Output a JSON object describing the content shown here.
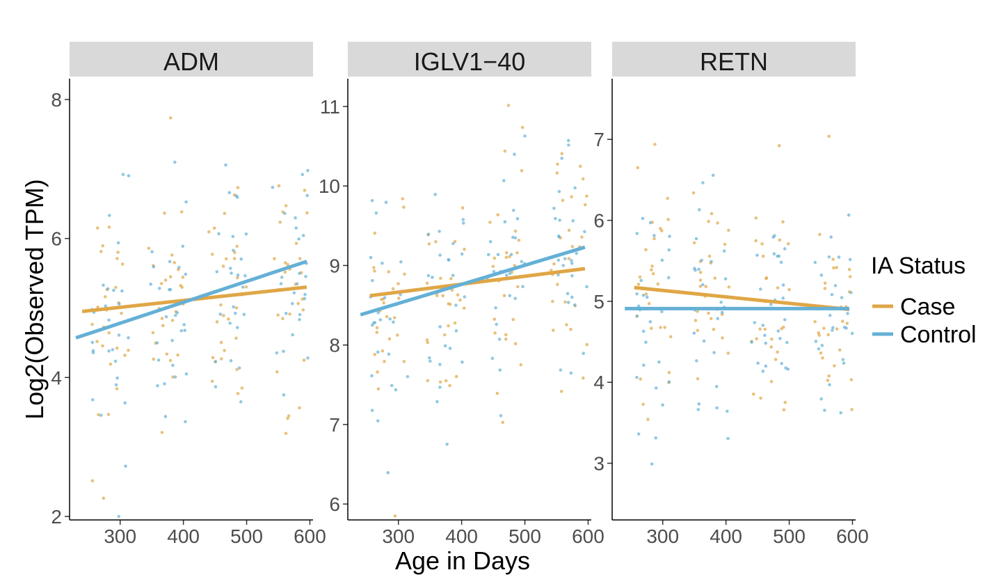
{
  "chart_data": {
    "type": "scatter",
    "xlabel": "Age in Days",
    "ylabel": "Log2(Observed TPM)",
    "x_ticks": [
      300,
      400,
      500,
      600
    ],
    "xlim": [
      220,
      605
    ],
    "legend": {
      "title": "IA Status",
      "position": "right",
      "entries": [
        {
          "name": "Case",
          "color": "#E0A646"
        },
        {
          "name": "Control",
          "color": "#64B0D6"
        }
      ]
    },
    "panels": [
      {
        "title": "ADM",
        "ylim": [
          1.95,
          8.3
        ],
        "y_ticks": [
          2,
          4,
          6,
          8
        ],
        "trend_lines": [
          {
            "series": "Case",
            "x": [
              240,
              595
            ],
            "y": [
              4.95,
              5.3
            ]
          },
          {
            "series": "Control",
            "x": [
              230,
              595
            ],
            "y": [
              4.57,
              5.67
            ]
          }
        ]
      },
      {
        "title": "IGLV1−40",
        "ylim": [
          5.8,
          11.35
        ],
        "y_ticks": [
          6,
          7,
          8,
          9,
          10,
          11
        ],
        "trend_lines": [
          {
            "series": "Case",
            "x": [
              255,
              595
            ],
            "y": [
              8.62,
              8.96
            ]
          },
          {
            "series": "Control",
            "x": [
              240,
              595
            ],
            "y": [
              8.38,
              9.23
            ]
          }
        ]
      },
      {
        "title": "RETN",
        "ylim": [
          2.3,
          7.75
        ],
        "y_ticks": [
          3,
          4,
          5,
          6,
          7
        ],
        "trend_lines": [
          {
            "series": "Case",
            "x": [
              255,
              595
            ],
            "y": [
              5.17,
              4.9
            ]
          },
          {
            "series": "Control",
            "x": [
              240,
              595
            ],
            "y": [
              4.91,
              4.91
            ]
          }
        ]
      }
    ],
    "point_clusters": {
      "x_centers": [
        285,
        375,
        470,
        570
      ],
      "x_spread": 30,
      "points_per_cluster_per_series": 28
    }
  }
}
